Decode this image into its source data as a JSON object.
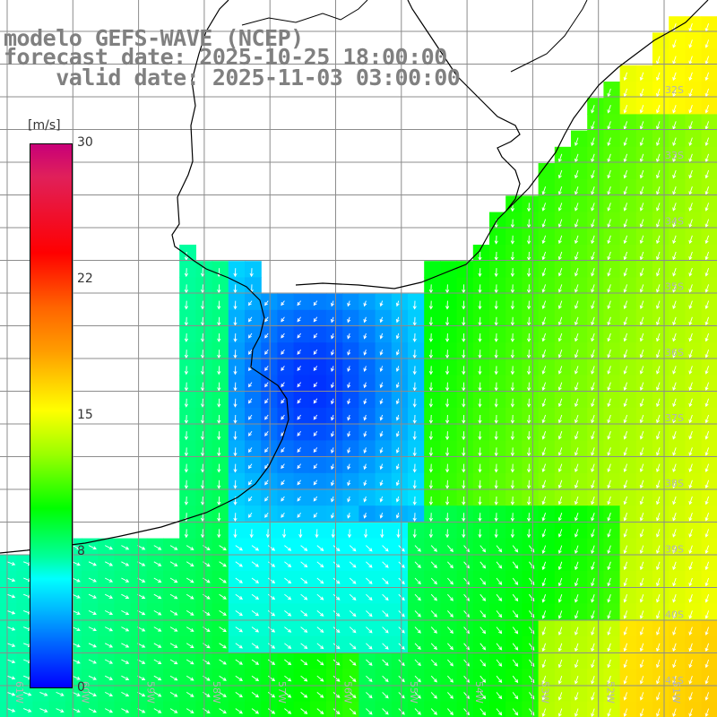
{
  "header": {
    "line1": "modelo GEFS-WAVE (NCEP)",
    "line2": "forecast date: 2025-10-25 18:00:00",
    "line3": "    valid date: 2025-11-03 03:00:00"
  },
  "colorbar": {
    "unit": "[m/s]",
    "ticks": [
      "30",
      "22",
      "15",
      "8",
      "0"
    ],
    "tick_values": [
      30,
      22,
      15,
      8,
      0
    ],
    "min": 0,
    "max": 30,
    "colors": [
      "#0000ff",
      "#0064ff",
      "#00b4ff",
      "#00ffff",
      "#00ff9c",
      "#00ff00",
      "#9cff00",
      "#ffff00",
      "#ff9c00",
      "#ff6400",
      "#ff0000",
      "#c80078"
    ]
  },
  "map": {
    "lat_labels": [
      "32S",
      "33S",
      "34S",
      "35S",
      "36S",
      "37S",
      "38S",
      "39S",
      "40S",
      "41S"
    ],
    "lon_labels": [
      "61W",
      "60W",
      "59W",
      "58W",
      "57W",
      "56W",
      "55W",
      "54W",
      "53W",
      "52W",
      "51W"
    ],
    "colors": {
      "land": "#ffffff",
      "grid": "#8c8c8c",
      "coast": "#000000",
      "arrows": "#ffffff"
    }
  }
}
